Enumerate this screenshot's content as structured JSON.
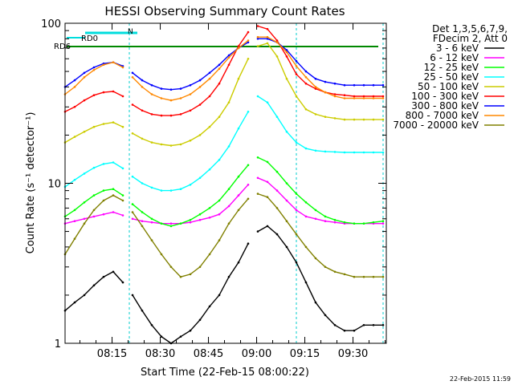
{
  "chart_data": {
    "type": "line",
    "title": "HESSI Observing Summary Count Rates",
    "xlabel": "Start Time (22-Feb-15 08:00:22)",
    "ylabel": "Count Rate (s⁻¹ detector⁻¹)",
    "yscale": "log",
    "ylim": [
      1,
      100
    ],
    "xlim": [
      "08:00:22",
      "09:40:00"
    ],
    "x_ticks": [
      "08:15",
      "08:30",
      "08:45",
      "09:00",
      "09:15",
      "09:30"
    ],
    "y_ticks": [
      "1",
      "10",
      "100"
    ],
    "grid": false,
    "legend_position": "right",
    "legend_header": [
      "Det 1,3,5,6,7,9,",
      "FDecim 2, Att 0"
    ],
    "footer_timestamp": "22-Feb-2015 11:59",
    "x_minutes": [
      0,
      3,
      6,
      9,
      12,
      15,
      18,
      21,
      24,
      27,
      30,
      33,
      36,
      39,
      42,
      45,
      48,
      51,
      54,
      57,
      60,
      63,
      66,
      69,
      72,
      75,
      78,
      81,
      84,
      87,
      90,
      93,
      96,
      99
    ],
    "gaps_after_minute": [
      18,
      57
    ],
    "series": [
      {
        "name": "3 - 6 keV",
        "color": "#000000",
        "values": [
          1.6,
          1.8,
          2.0,
          2.3,
          2.6,
          2.8,
          2.4,
          2.0,
          1.6,
          1.3,
          1.1,
          1.0,
          1.1,
          1.2,
          1.4,
          1.7,
          2.0,
          2.6,
          3.2,
          4.2,
          5.0,
          5.4,
          4.8,
          4.0,
          3.2,
          2.4,
          1.8,
          1.5,
          1.3,
          1.2,
          1.2,
          1.3,
          1.3,
          1.3
        ]
      },
      {
        "name": "6 - 12 keV",
        "color": "#ff00ff",
        "values": [
          5.6,
          5.8,
          6.0,
          6.2,
          6.4,
          6.6,
          6.3,
          6.0,
          5.8,
          5.7,
          5.6,
          5.6,
          5.6,
          5.7,
          5.9,
          6.1,
          6.4,
          7.2,
          8.4,
          9.8,
          10.8,
          10.2,
          9.0,
          7.8,
          6.8,
          6.2,
          6.0,
          5.8,
          5.7,
          5.6,
          5.6,
          5.6,
          5.6,
          5.6
        ]
      },
      {
        "name": "12 - 25 keV",
        "color": "#00ff00",
        "values": [
          6.2,
          6.8,
          7.6,
          8.4,
          9.0,
          9.2,
          8.4,
          7.4,
          6.6,
          6.0,
          5.6,
          5.4,
          5.6,
          5.9,
          6.4,
          7.0,
          7.8,
          9.2,
          11.0,
          13.0,
          14.5,
          13.6,
          11.8,
          10.0,
          8.6,
          7.6,
          6.8,
          6.2,
          5.9,
          5.7,
          5.6,
          5.6,
          5.7,
          5.8
        ]
      },
      {
        "name": "25 - 50 keV",
        "color": "#00ffff",
        "values": [
          9.5,
          10.5,
          11.5,
          12.5,
          13.2,
          13.5,
          12.4,
          11.0,
          10.0,
          9.4,
          9.0,
          9.0,
          9.2,
          9.8,
          10.8,
          12.2,
          14.0,
          17.0,
          22.0,
          28.0,
          35.0,
          32.0,
          26.0,
          21.0,
          18.0,
          16.5,
          16.0,
          15.8,
          15.7,
          15.6,
          15.6,
          15.6,
          15.6,
          15.6
        ]
      },
      {
        "name": "50 - 100 keV",
        "color": "#cccc00",
        "values": [
          18.0,
          19.5,
          21.0,
          22.5,
          23.5,
          24.0,
          22.5,
          20.5,
          19.0,
          18.0,
          17.5,
          17.2,
          17.5,
          18.5,
          20.0,
          22.5,
          26.0,
          32.0,
          45.0,
          60.0,
          72.0,
          75.0,
          62.0,
          45.0,
          35.0,
          29.0,
          27.0,
          26.0,
          25.5,
          25.0,
          25.0,
          25.0,
          25.0,
          25.0
        ]
      },
      {
        "name": "100 - 300 keV",
        "color": "#ff0000",
        "values": [
          28.0,
          30.0,
          33.0,
          35.5,
          37.0,
          37.5,
          35.0,
          31.0,
          28.5,
          27.0,
          26.5,
          26.5,
          27.0,
          28.5,
          31.0,
          35.0,
          42.0,
          55.0,
          72.0,
          88.0,
          96.0,
          92.0,
          78.0,
          62.0,
          48.0,
          42.0,
          39.0,
          37.0,
          36.0,
          35.5,
          35.0,
          35.0,
          35.0,
          35.0
        ]
      },
      {
        "name": "300 - 800 keV",
        "color": "#0000ff",
        "values": [
          40.0,
          44.0,
          49.0,
          53.0,
          56.0,
          57.0,
          54.0,
          49.0,
          44.0,
          41.0,
          39.0,
          38.5,
          39.0,
          41.0,
          44.0,
          49.0,
          55.0,
          63.0,
          70.0,
          76.0,
          80.0,
          80.0,
          76.0,
          68.0,
          58.0,
          50.0,
          45.0,
          43.0,
          42.0,
          41.0,
          41.0,
          41.0,
          41.0,
          41.0
        ]
      },
      {
        "name": "800 - 7000 keV",
        "color": "#ff8800",
        "values": [
          36.0,
          40.0,
          46.0,
          51.0,
          55.0,
          57.0,
          53.0,
          46.0,
          40.0,
          36.0,
          34.0,
          33.0,
          34.0,
          36.0,
          40.0,
          45.0,
          52.0,
          61.0,
          70.0,
          78.0,
          82.0,
          82.0,
          76.0,
          66.0,
          54.0,
          46.0,
          40.0,
          37.0,
          35.0,
          34.0,
          34.0,
          34.0,
          34.0,
          34.0
        ]
      },
      {
        "name": "7000 - 20000 keV",
        "color": "#808000",
        "values": [
          3.6,
          4.5,
          5.6,
          6.8,
          7.8,
          8.4,
          7.8,
          6.6,
          5.4,
          4.4,
          3.6,
          3.0,
          2.6,
          2.7,
          3.0,
          3.6,
          4.4,
          5.6,
          6.8,
          8.0,
          8.6,
          8.2,
          7.0,
          5.8,
          4.8,
          4.0,
          3.4,
          3.0,
          2.8,
          2.7,
          2.6,
          2.6,
          2.6,
          2.6
        ]
      }
    ],
    "annotations": {
      "rd0_label": "RD0",
      "rd6_label": "RD6",
      "n_label": "N"
    }
  }
}
